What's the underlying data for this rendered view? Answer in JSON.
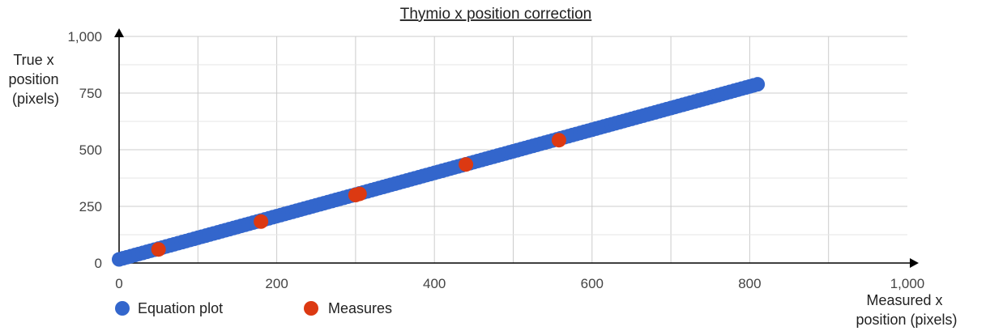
{
  "chart_data": {
    "type": "scatter",
    "title": "Thymio x position correction",
    "xlabel": [
      "Measured x",
      "position (pixels)"
    ],
    "ylabel": [
      "True x",
      "position",
      "(pixels)"
    ],
    "xlim": [
      0,
      1000
    ],
    "ylim": [
      0,
      1000
    ],
    "x_ticks": [
      0,
      200,
      400,
      600,
      800,
      1000
    ],
    "x_tick_labels": [
      "0",
      "200",
      "400",
      "600",
      "800",
      "1,000"
    ],
    "y_ticks": [
      0,
      250,
      500,
      750,
      1000
    ],
    "y_tick_labels": [
      "0",
      "250",
      "500",
      "750",
      "1,000"
    ],
    "grid": true,
    "legend_position": "bottom-left",
    "series": [
      {
        "name": "Equation plot",
        "color": "#3366cc",
        "x_start": 0,
        "x_end": 810,
        "x_step": 5,
        "slope": 0.954,
        "intercept": 16
      },
      {
        "name": "Measures",
        "color": "#dc3912",
        "points": [
          {
            "x": 50,
            "y": 60
          },
          {
            "x": 180,
            "y": 183
          },
          {
            "x": 300,
            "y": 300
          },
          {
            "x": 305,
            "y": 305
          },
          {
            "x": 440,
            "y": 435
          },
          {
            "x": 558,
            "y": 542
          }
        ]
      }
    ]
  }
}
